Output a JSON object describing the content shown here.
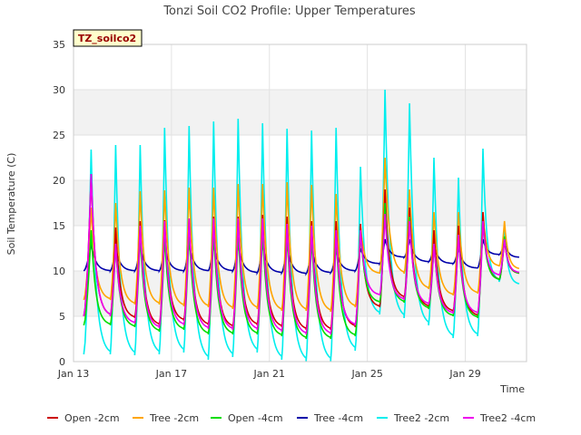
{
  "chart_data": {
    "type": "line",
    "title": "Tonzi Soil CO2 Profile: Upper Temperatures",
    "xlabel": "Time",
    "ylabel": "Soil Temperature (C)",
    "badge": "TZ_soilco2",
    "xlim": [
      0,
      18.5
    ],
    "ylim": [
      0,
      35
    ],
    "yticks": [
      0,
      5,
      10,
      15,
      20,
      25,
      30,
      35
    ],
    "xticks": [
      {
        "label": "Jan 13",
        "value": 0
      },
      {
        "label": "Jan 17",
        "value": 4
      },
      {
        "label": "Jan 21",
        "value": 8
      },
      {
        "label": "Jan 25",
        "value": 12
      },
      {
        "label": "Jan 29",
        "value": 16
      }
    ],
    "grid": true,
    "legend_position": "bottom",
    "day_peaks": [
      {
        "day": 0.72,
        "open2": 20.7,
        "tree2": 17,
        "open4": 14.5,
        "tree4": 13,
        "t2_2": 23.4,
        "t2_4": 20.7,
        "min_open2": 5,
        "min_tree2": 6.8,
        "min_open4": 4,
        "min_tree4": 10,
        "min_t2_2": 0.8,
        "min_t2_4": 5
      },
      {
        "day": 1.72,
        "open2": 14.8,
        "tree2": 17.5,
        "open4": 13,
        "tree4": 12.5,
        "t2_2": 23.9,
        "t2_4": 13,
        "min_open2": 4.8,
        "min_tree2": 6.3,
        "min_open4": 3.8,
        "min_tree4": 10,
        "min_t2_2": 0.7,
        "min_t2_4": 4.2
      },
      {
        "day": 2.72,
        "open2": 15.5,
        "tree2": 18.8,
        "open4": 14,
        "tree4": 12.8,
        "t2_2": 23.9,
        "t2_4": 15,
        "min_open2": 4,
        "min_tree2": 6.3,
        "min_open4": 3.3,
        "min_tree4": 10,
        "min_t2_2": 0.8,
        "min_t2_4": 3.7
      },
      {
        "day": 3.72,
        "open2": 15.6,
        "tree2": 18.9,
        "open4": 14,
        "tree4": 12.8,
        "t2_2": 25.8,
        "t2_4": 15.5,
        "min_open2": 4.5,
        "min_tree2": 6.1,
        "min_open4": 3.5,
        "min_tree4": 10,
        "min_t2_2": 1,
        "min_t2_4": 4
      },
      {
        "day": 4.72,
        "open2": 15.8,
        "tree2": 19.2,
        "open4": 14.5,
        "tree4": 13,
        "t2_2": 26,
        "t2_4": 15.8,
        "min_open2": 4,
        "min_tree2": 6,
        "min_open4": 3,
        "min_tree4": 10,
        "min_t2_2": 0.2,
        "min_t2_4": 3.6
      },
      {
        "day": 5.72,
        "open2": 16,
        "tree2": 19.2,
        "open4": 14.5,
        "tree4": 13,
        "t2_2": 26.5,
        "t2_4": 15.8,
        "min_open2": 3.8,
        "min_tree2": 5.8,
        "min_open4": 3,
        "min_tree4": 10,
        "min_t2_2": 0.5,
        "min_t2_4": 3.5
      },
      {
        "day": 6.72,
        "open2": 16,
        "tree2": 19.6,
        "open4": 14.5,
        "tree4": 13,
        "t2_2": 26.8,
        "t2_4": 15.8,
        "min_open2": 4,
        "min_tree2": 5.8,
        "min_open4": 3,
        "min_tree4": 9.8,
        "min_t2_2": 1,
        "min_t2_4": 3.5
      },
      {
        "day": 7.72,
        "open2": 16.2,
        "tree2": 19.6,
        "open4": 14.5,
        "tree4": 13,
        "t2_2": 26.3,
        "t2_4": 15.8,
        "min_open2": 3.8,
        "min_tree2": 5.6,
        "min_open4": 2.8,
        "min_tree4": 9.8,
        "min_t2_2": 0.2,
        "min_t2_4": 3.3
      },
      {
        "day": 8.72,
        "open2": 16,
        "tree2": 19.8,
        "open4": 14.3,
        "tree4": 12.8,
        "t2_2": 25.7,
        "t2_4": 15.2,
        "min_open2": 3.5,
        "min_tree2": 5.6,
        "min_open4": 2.5,
        "min_tree4": 9.7,
        "min_t2_2": 0,
        "min_t2_4": 3
      },
      {
        "day": 9.72,
        "open2": 15.5,
        "tree2": 19.5,
        "open4": 14,
        "tree4": 12.5,
        "t2_2": 25.5,
        "t2_4": 15,
        "min_open2": 3.5,
        "min_tree2": 5.5,
        "min_open4": 2.5,
        "min_tree4": 9.8,
        "min_t2_2": 0,
        "min_t2_4": 3
      },
      {
        "day": 10.72,
        "open2": 15.5,
        "tree2": 18.5,
        "open4": 14,
        "tree4": 12.3,
        "t2_2": 25.8,
        "t2_4": 14.5,
        "min_open2": 3.8,
        "min_tree2": 6,
        "min_open4": 2.8,
        "min_tree4": 10,
        "min_t2_2": 1.2,
        "min_t2_4": 4
      },
      {
        "day": 11.72,
        "open2": 15.2,
        "tree2": 15,
        "open4": 14.5,
        "tree4": 12.5,
        "t2_2": 21.5,
        "t2_4": 14.5,
        "min_open2": 6,
        "min_tree2": 9.7,
        "min_open4": 6.5,
        "min_tree4": 10.8,
        "min_t2_2": 5.2,
        "min_t2_4": 7.3
      },
      {
        "day": 12.72,
        "open2": 19,
        "tree2": 22.5,
        "open4": 17.5,
        "tree4": 13.5,
        "t2_2": 30,
        "t2_4": 16.3,
        "min_open2": 7,
        "min_tree2": 9.7,
        "min_open4": 6.5,
        "min_tree4": 11.5,
        "min_t2_2": 4.8,
        "min_t2_4": 6.8
      },
      {
        "day": 13.72,
        "open2": 17,
        "tree2": 19,
        "open4": 16,
        "tree4": 13.5,
        "t2_2": 28.5,
        "t2_4": 15.5,
        "min_open2": 6,
        "min_tree2": 8,
        "min_open4": 5.8,
        "min_tree4": 11,
        "min_t2_2": 4,
        "min_t2_4": 6.3
      },
      {
        "day": 14.72,
        "open2": 14.5,
        "tree2": 16.5,
        "open4": 13,
        "tree4": 12.8,
        "t2_2": 22.5,
        "t2_4": 13,
        "min_open2": 5.5,
        "min_tree2": 7.3,
        "min_open4": 5,
        "min_tree4": 10.8,
        "min_t2_2": 2.6,
        "min_t2_4": 5.3
      },
      {
        "day": 15.72,
        "open2": 15,
        "tree2": 16.5,
        "open4": 14,
        "tree4": 12.5,
        "t2_2": 20.3,
        "t2_4": 14,
        "min_open2": 5,
        "min_tree2": 7.5,
        "min_open4": 4.8,
        "min_tree4": 10.3,
        "min_t2_2": 2.8,
        "min_t2_4": 5.3
      },
      {
        "day": 16.72,
        "open2": 16.5,
        "tree2": 16.5,
        "open4": 15.5,
        "tree4": 13.5,
        "t2_2": 23.5,
        "t2_4": 15.5,
        "min_open2": 9,
        "min_tree2": 10.5,
        "min_open4": 9,
        "min_tree4": 11.8,
        "min_t2_2": 8.8,
        "min_t2_4": 9.5
      },
      {
        "day": 17.6,
        "open2": 13.5,
        "tree2": 15.5,
        "open4": 13.8,
        "tree4": 13.2,
        "t2_2": 14.5,
        "t2_4": 13.5,
        "min_open2": 9.7,
        "min_tree2": 10.2,
        "min_open4": 9.7,
        "min_tree4": 11.5,
        "min_t2_2": 8.5,
        "min_t2_4": 9.8
      }
    ],
    "series": [
      {
        "name": "Open -2cm",
        "key": "open2",
        "color": "#cc0000"
      },
      {
        "name": "Tree -2cm",
        "key": "tree2",
        "color": "#ffa500"
      },
      {
        "name": "Open -4cm",
        "key": "open4",
        "color": "#00dd00"
      },
      {
        "name": "Tree -4cm",
        "key": "tree4",
        "color": "#0000aa"
      },
      {
        "name": "Tree2 -2cm",
        "key": "t2_2",
        "color": "#00eeee"
      },
      {
        "name": "Tree2 -4cm",
        "key": "t2_4",
        "color": "#ee00ee"
      }
    ]
  }
}
